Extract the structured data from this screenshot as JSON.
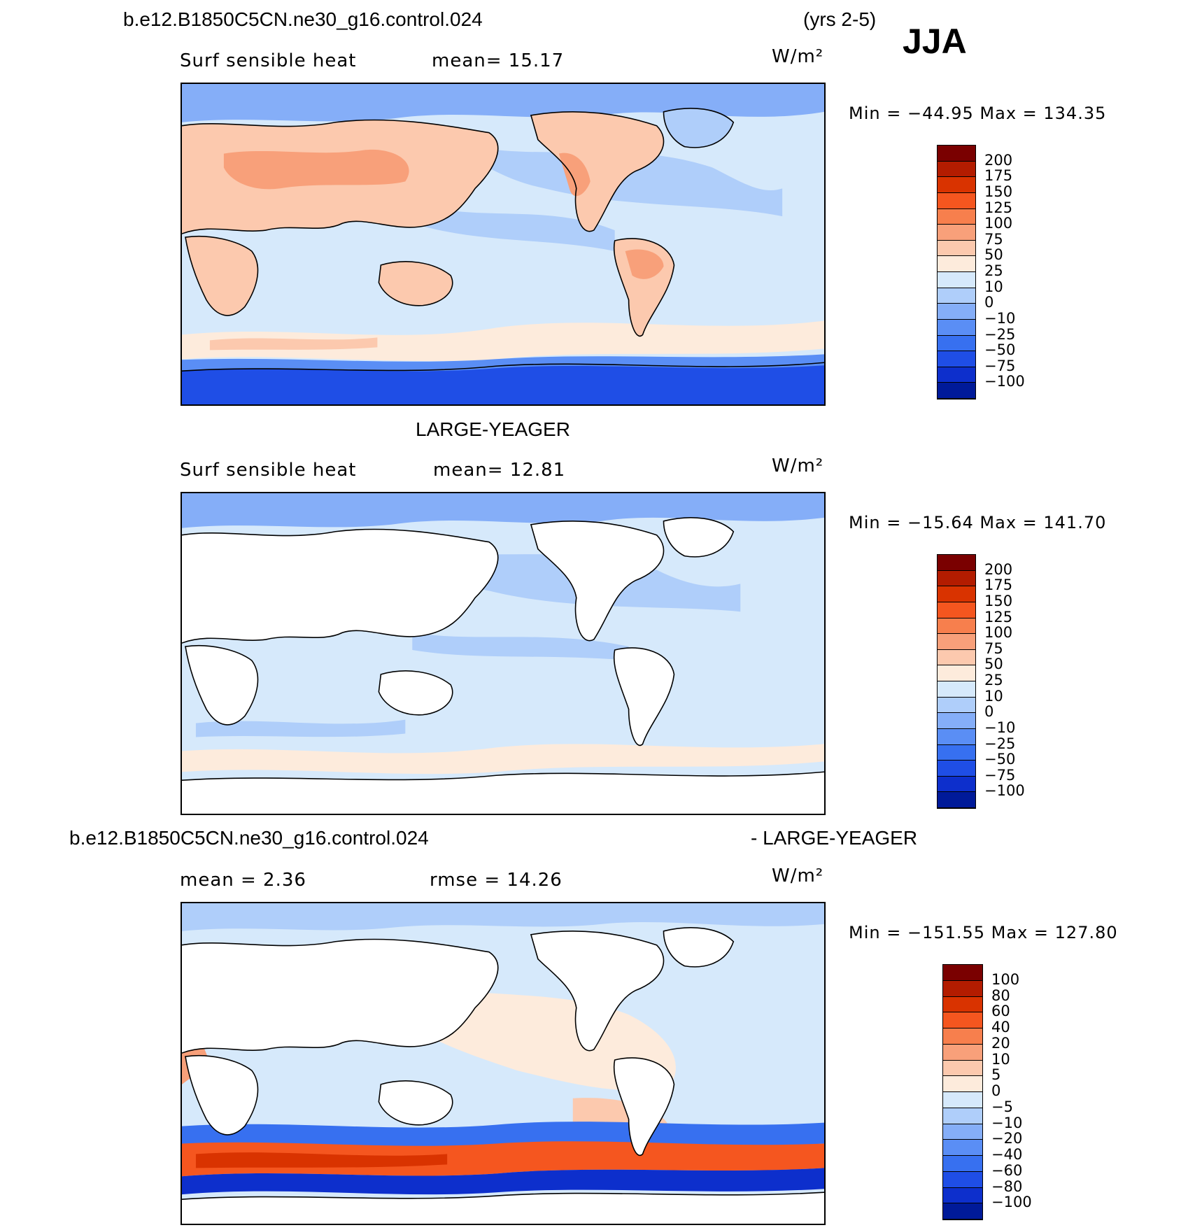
{
  "header": {
    "case": "b.e12.B1850C5CN.ne30_g16.control.024",
    "years": "(yrs 2-5)",
    "season": "JJA"
  },
  "panels": [
    {
      "id": "p1",
      "top_title": "",
      "variable": "Surf sensible heat",
      "left_stat": "mean=  15.17",
      "right_stat": "",
      "units": "W/m²",
      "minmax": "Min = −44.95 Max = 134.35",
      "colorbar": {
        "labels": [
          "200",
          "175",
          "150",
          "125",
          "100",
          "75",
          "50",
          "25",
          "10",
          "0",
          "−10",
          "−25",
          "−50",
          "−75",
          "−100"
        ],
        "colors": [
          "#7a0000",
          "#b31c00",
          "#d93300",
          "#f5561f",
          "#f77f4d",
          "#f8a07a",
          "#fcc9ae",
          "#fdebdc",
          "#d6e9fb",
          "#afcefa",
          "#85aef8",
          "#5a8ef5",
          "#3770f0",
          "#1f4ee6",
          "#0d2fcc",
          "#001a99"
        ]
      }
    },
    {
      "id": "p2",
      "top_title": "LARGE-YEAGER",
      "variable": "Surf sensible heat",
      "left_stat": "mean=  12.81",
      "right_stat": "",
      "units": "W/m²",
      "minmax": "Min = −15.64 Max = 141.70",
      "colorbar": {
        "labels": [
          "200",
          "175",
          "150",
          "125",
          "100",
          "75",
          "50",
          "25",
          "10",
          "0",
          "−10",
          "−25",
          "−50",
          "−75",
          "−100"
        ],
        "colors": [
          "#7a0000",
          "#b31c00",
          "#d93300",
          "#f5561f",
          "#f77f4d",
          "#f8a07a",
          "#fcc9ae",
          "#fdebdc",
          "#d6e9fb",
          "#afcefa",
          "#85aef8",
          "#5a8ef5",
          "#3770f0",
          "#1f4ee6",
          "#0d2fcc",
          "#001a99"
        ]
      }
    },
    {
      "id": "p3",
      "top_title_left": "b.e12.B1850C5CN.ne30_g16.control.024",
      "top_title_right": "- LARGE-YEAGER",
      "variable": "",
      "left_stat": "mean =   2.36",
      "right_stat": "rmse =  14.26",
      "units": "W/m²",
      "minmax": "Min = −151.55 Max = 127.80",
      "colorbar": {
        "labels": [
          "100",
          "80",
          "60",
          "40",
          "20",
          "10",
          "5",
          "0",
          "−5",
          "−10",
          "−20",
          "−40",
          "−60",
          "−80",
          "−100"
        ],
        "colors": [
          "#7a0000",
          "#b31c00",
          "#d93300",
          "#f5561f",
          "#f77f4d",
          "#f8a07a",
          "#fcc9ae",
          "#fdebdc",
          "#d6e9fb",
          "#afcefa",
          "#85aef8",
          "#5a8ef5",
          "#3770f0",
          "#1f4ee6",
          "#0d2fcc",
          "#001a99"
        ]
      }
    }
  ],
  "map_colors": {
    "ocean_light": "#d6e9fb",
    "ocean_mid": "#afcefa",
    "ocean_blue": "#85aef8",
    "ice_deep": "#1f4ee6",
    "land_warm": "#fcc9ae",
    "land_warmer": "#f8a07a",
    "warm_band": "#fdebdc",
    "hot": "#f5561f",
    "land_white": "#ffffff"
  }
}
